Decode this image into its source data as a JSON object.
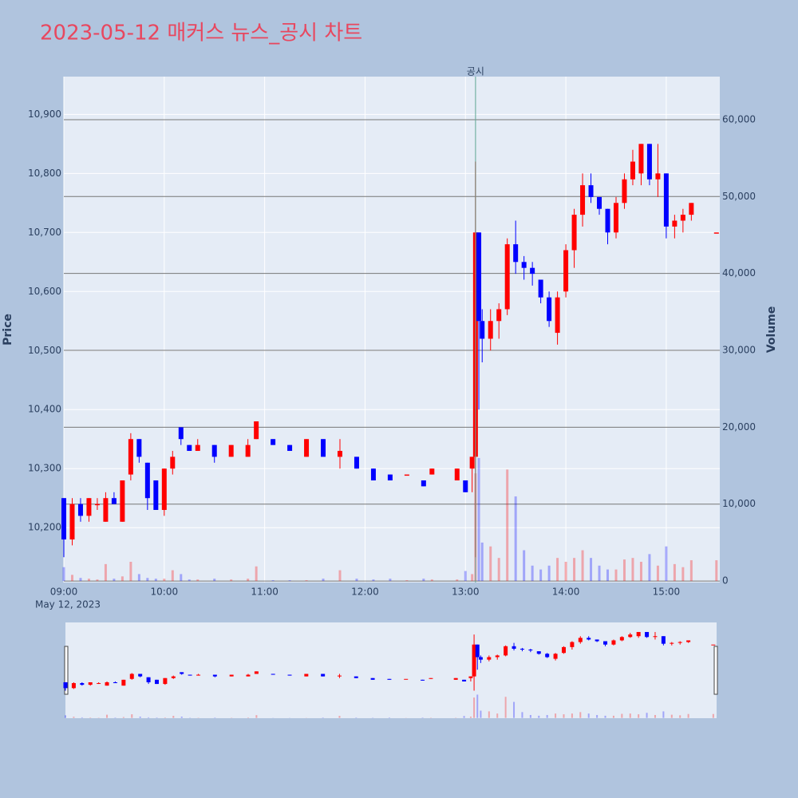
{
  "chart_data": {
    "type": "candlestick",
    "title": "2023-05-12 매커스 뉴스_공시 차트",
    "ylabel": "Price",
    "y2label": "Volume",
    "x_sublabel": "May 12, 2023",
    "increasing_color": "#ff0000",
    "decreasing_color": "#0000ff",
    "x": [
      "09:00",
      "09:05",
      "09:10",
      "09:15",
      "09:20",
      "09:25",
      "09:30",
      "09:35",
      "09:40",
      "09:45",
      "09:50",
      "09:55",
      "10:00",
      "10:05",
      "10:10",
      "10:15",
      "10:20",
      "10:30",
      "10:40",
      "10:50",
      "10:55",
      "11:05",
      "11:15",
      "11:25",
      "11:35",
      "11:45",
      "11:55",
      "12:05",
      "12:15",
      "12:25",
      "12:35",
      "12:40",
      "12:55",
      "13:00",
      "13:04",
      "13:06",
      "13:08",
      "13:10",
      "13:15",
      "13:20",
      "13:25",
      "13:30",
      "13:35",
      "13:40",
      "13:45",
      "13:50",
      "13:55",
      "14:00",
      "14:05",
      "14:10",
      "14:15",
      "14:20",
      "14:25",
      "14:30",
      "14:35",
      "14:40",
      "14:45",
      "14:50",
      "14:55",
      "15:00",
      "15:05",
      "15:10",
      "15:15",
      "15:30"
    ],
    "open": [
      10250,
      10180,
      10240,
      10220,
      10240,
      10210,
      10250,
      10210,
      10290,
      10350,
      10310,
      10280,
      10230,
      10300,
      10370,
      10340,
      10330,
      10340,
      10320,
      10320,
      10350,
      10350,
      10340,
      10320,
      10350,
      10320,
      10320,
      10300,
      10290,
      10290,
      10280,
      10290,
      10280,
      10280,
      10300,
      10320,
      10700,
      10550,
      10520,
      10550,
      10570,
      10680,
      10650,
      10640,
      10620,
      10590,
      10530,
      10600,
      10670,
      10730,
      10780,
      10760,
      10740,
      10700,
      10750,
      10790,
      10800,
      10850,
      10790,
      10800,
      10710,
      10720,
      10730,
      10700
    ],
    "high": [
      10250,
      10250,
      10250,
      10250,
      10250,
      10260,
      10260,
      10280,
      10360,
      10350,
      10310,
      10280,
      10300,
      10330,
      10370,
      10340,
      10350,
      10340,
      10340,
      10350,
      10380,
      10350,
      10340,
      10350,
      10350,
      10350,
      10320,
      10300,
      10290,
      10290,
      10280,
      10300,
      10300,
      10280,
      10320,
      10820,
      10700,
      10570,
      10570,
      10580,
      10690,
      10720,
      10660,
      10650,
      10620,
      10600,
      10600,
      10680,
      10740,
      10800,
      10800,
      10760,
      10740,
      10760,
      10800,
      10840,
      10850,
      10850,
      10850,
      10800,
      10730,
      10740,
      10750,
      10700
    ],
    "low": [
      10150,
      10170,
      10210,
      10210,
      10230,
      10210,
      10240,
      10210,
      10280,
      10310,
      10230,
      10230,
      10220,
      10290,
      10340,
      10330,
      10330,
      10310,
      10320,
      10320,
      10350,
      10340,
      10330,
      10320,
      10320,
      10300,
      10300,
      10280,
      10280,
      10290,
      10270,
      10290,
      10280,
      10260,
      10260,
      10150,
      10400,
      10480,
      10500,
      10520,
      10560,
      10630,
      10620,
      10610,
      10580,
      10540,
      10510,
      10590,
      10640,
      10710,
      10750,
      10730,
      10680,
      10690,
      10740,
      10780,
      10780,
      10780,
      10760,
      10690,
      10690,
      10700,
      10720,
      10700
    ],
    "close": [
      10180,
      10240,
      10220,
      10250,
      10240,
      10250,
      10240,
      10280,
      10350,
      10320,
      10250,
      10230,
      10300,
      10320,
      10350,
      10330,
      10340,
      10320,
      10340,
      10340,
      10380,
      10340,
      10330,
      10350,
      10320,
      10330,
      10300,
      10280,
      10280,
      10290,
      10270,
      10300,
      10300,
      10260,
      10320,
      10700,
      10550,
      10520,
      10550,
      10570,
      10680,
      10650,
      10640,
      10630,
      10590,
      10550,
      10590,
      10670,
      10730,
      10780,
      10760,
      10740,
      10700,
      10750,
      10790,
      10820,
      10850,
      10790,
      10800,
      10710,
      10720,
      10730,
      10750,
      10700
    ],
    "volume": [
      1800,
      800,
      400,
      300,
      200,
      2200,
      300,
      600,
      2500,
      900,
      400,
      300,
      300,
      1400,
      900,
      200,
      200,
      300,
      200,
      300,
      1900,
      100,
      100,
      100,
      300,
      1400,
      300,
      200,
      300,
      100,
      300,
      200,
      200,
      1300,
      900,
      14000,
      16000,
      5000,
      4500,
      3000,
      14500,
      11000,
      4000,
      2000,
      1500,
      2000,
      3000,
      2500,
      3000,
      4000,
      3000,
      2000,
      1500,
      1500,
      2800,
      3000,
      2500,
      3500,
      2000,
      4500,
      2200,
      1800,
      2700,
      2700
    ],
    "xlim": [
      "09:00",
      "15:32"
    ],
    "xticks": [
      "09:00",
      "10:00",
      "11:00",
      "12:00",
      "13:00",
      "14:00",
      "15:00"
    ],
    "ylim": [
      10107,
      10964
    ],
    "yticks": [
      {
        "value": 10200,
        "label": "10,200"
      },
      {
        "value": 10300,
        "label": "10,300"
      },
      {
        "value": 10400,
        "label": "10,400"
      },
      {
        "value": 10500,
        "label": "10,500"
      },
      {
        "value": 10600,
        "label": "10,600"
      },
      {
        "value": 10700,
        "label": "10,700"
      },
      {
        "value": 10800,
        "label": "10,800"
      },
      {
        "value": 10900,
        "label": "10,900"
      }
    ],
    "y2lim": [
      -200,
      65600
    ],
    "y2ticks": [
      0,
      {
        "value": 10000,
        "label": "10,000"
      },
      {
        "value": 20000,
        "label": "20,000"
      },
      {
        "value": 30000,
        "label": "30,000"
      },
      {
        "value": 40000,
        "label": "40,000"
      },
      {
        "value": 50000,
        "label": "50,000"
      },
      {
        "value": 60000,
        "label": "60,000"
      }
    ],
    "annotations": [
      {
        "x": "13:06",
        "text": "공시"
      }
    ]
  }
}
